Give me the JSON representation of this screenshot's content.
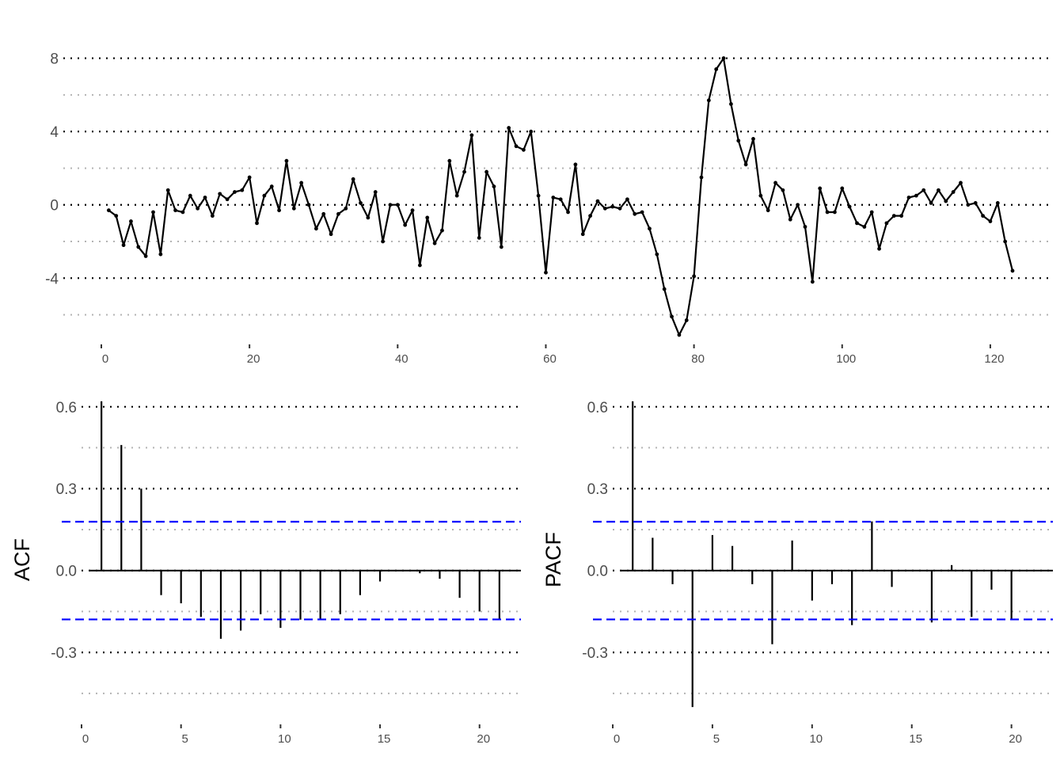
{
  "chart_data": [
    {
      "type": "line",
      "title": "",
      "xlabel": "",
      "ylabel": "",
      "xlim": [
        0,
        123
      ],
      "ylim": [
        -7.4,
        8.5
      ],
      "x_ticks": [
        0,
        20,
        40,
        60,
        80,
        100,
        120
      ],
      "y_ticks": [
        -4,
        0,
        4,
        8
      ],
      "y_minor_ticks": [
        -6,
        -2,
        2,
        6
      ],
      "grid": "dotted horizontal",
      "series": [
        {
          "x_start": 1,
          "x_step": 1,
          "values": [
            -0.3,
            -0.6,
            -2.2,
            -0.9,
            -2.3,
            -2.8,
            -0.4,
            -2.7,
            0.8,
            -0.3,
            -0.4,
            0.5,
            -0.2,
            0.4,
            -0.6,
            0.6,
            0.3,
            0.7,
            0.8,
            1.5,
            -1.0,
            0.5,
            1.0,
            -0.3,
            2.4,
            -0.2,
            1.2,
            0.0,
            -1.3,
            -0.5,
            -1.6,
            -0.5,
            -0.2,
            1.4,
            0.1,
            -0.7,
            0.7,
            -2.0,
            0.0,
            0.0,
            -1.1,
            -0.3,
            -3.3,
            -0.7,
            -2.1,
            -1.4,
            2.4,
            0.5,
            1.8,
            3.8,
            -1.8,
            1.8,
            1.0,
            -2.3,
            4.2,
            3.2,
            3.0,
            4.0,
            0.5,
            -3.7,
            0.4,
            0.3,
            -0.4,
            2.2,
            -1.6,
            -0.6,
            0.2,
            -0.2,
            -0.1,
            -0.2,
            0.3,
            -0.5,
            -0.4,
            -1.3,
            -2.7,
            -4.6,
            -6.1,
            -7.1,
            -6.3,
            -3.9,
            1.5,
            5.7,
            7.4,
            8.0,
            5.5,
            3.5,
            2.2,
            3.6,
            0.5,
            -0.3,
            1.2,
            0.8,
            -0.8,
            0.0,
            -1.2,
            -4.2,
            0.9,
            -0.4,
            -0.4,
            0.9,
            -0.1,
            -1.0,
            -1.2,
            -0.4,
            -2.4,
            -1.0,
            -0.6,
            -0.6,
            0.4,
            0.5,
            0.8,
            0.1,
            0.8,
            0.2,
            0.7,
            1.2,
            0.0,
            0.1,
            -0.6,
            -0.9,
            0.1,
            -2.0,
            -3.6
          ]
        }
      ],
      "line_color": "#000000"
    },
    {
      "type": "bar",
      "title": "",
      "xlabel": "",
      "ylabel": "ACF",
      "xlim": [
        0,
        22
      ],
      "ylim": [
        -0.52,
        0.64
      ],
      "x_ticks": [
        0,
        5,
        10,
        15,
        20
      ],
      "y_ticks": [
        -0.3,
        0.0,
        0.3,
        0.6
      ],
      "y_minor_ticks": [
        -0.45,
        -0.15,
        0.15,
        0.45
      ],
      "grid": "dotted horizontal",
      "confidence_bound": 0.179,
      "confidence_color": "#0000ff",
      "categories": [
        1,
        2,
        3,
        4,
        5,
        6,
        7,
        8,
        9,
        10,
        11,
        12,
        13,
        14,
        15,
        16,
        17,
        18,
        19,
        20,
        21
      ],
      "values": [
        0.62,
        0.46,
        0.3,
        -0.09,
        -0.12,
        -0.17,
        -0.25,
        -0.22,
        -0.16,
        -0.21,
        -0.18,
        -0.18,
        -0.16,
        -0.09,
        -0.04,
        0.0,
        -0.01,
        -0.03,
        -0.1,
        -0.15,
        -0.18
      ]
    },
    {
      "type": "bar",
      "title": "",
      "xlabel": "",
      "ylabel": "PACF",
      "xlim": [
        0,
        22
      ],
      "ylim": [
        -0.52,
        0.64
      ],
      "x_ticks": [
        0,
        5,
        10,
        15,
        20
      ],
      "y_ticks": [
        -0.3,
        0.0,
        0.3,
        0.6
      ],
      "y_minor_ticks": [
        -0.45,
        -0.15,
        0.15,
        0.45
      ],
      "grid": "dotted horizontal",
      "confidence_bound": 0.179,
      "confidence_color": "#0000ff",
      "categories": [
        1,
        2,
        3,
        4,
        5,
        6,
        7,
        8,
        9,
        10,
        11,
        12,
        13,
        14,
        15,
        16,
        17,
        18,
        19,
        20,
        21
      ],
      "values": [
        0.62,
        0.12,
        -0.05,
        -0.5,
        0.13,
        0.09,
        -0.05,
        -0.27,
        0.11,
        -0.11,
        -0.05,
        -0.2,
        0.18,
        -0.06,
        0.0,
        -0.19,
        0.02,
        -0.17,
        -0.07,
        -0.18,
        0.0
      ]
    }
  ]
}
